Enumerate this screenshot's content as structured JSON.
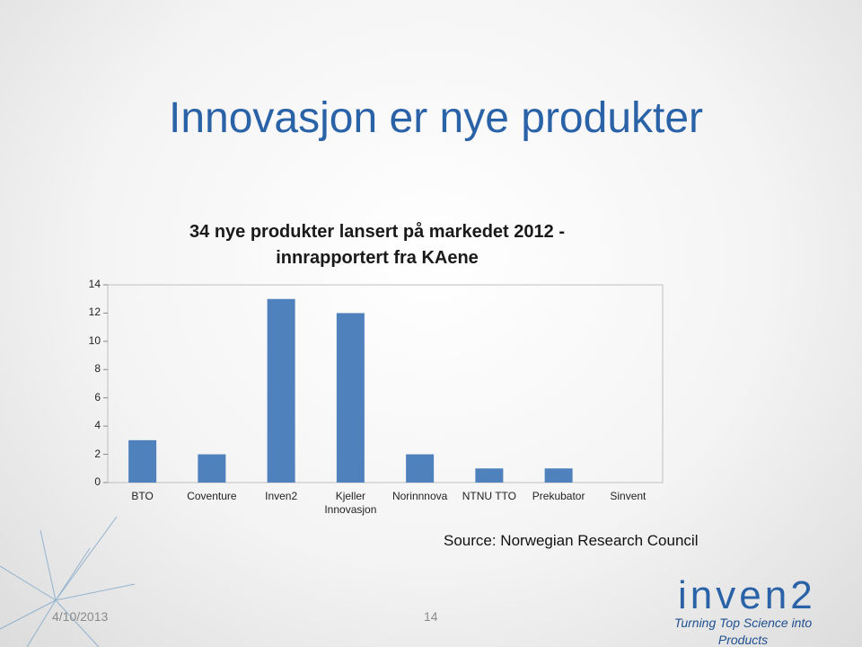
{
  "slide_title": "Innovasjon er nye produkter",
  "chart_data": {
    "type": "bar",
    "title": "34 nye produkter lansert på markedet 2012 - innrapportert fra KAene",
    "categories": [
      "BTO",
      "Coventure",
      "Inven2",
      "Kjeller Innovasjon",
      "Norinnnova",
      "NTNU TTO",
      "Prekubator",
      "Sinvent"
    ],
    "values": [
      3,
      2,
      13,
      12,
      2,
      1,
      1,
      0
    ],
    "color": "#4f81bd",
    "ylim": [
      0,
      14
    ],
    "yticks": [
      0,
      2,
      4,
      6,
      8,
      10,
      12,
      14
    ],
    "grid": false
  },
  "source": "Source: Norwegian Research Council",
  "footer": {
    "date": "4/10/2013",
    "page": "14",
    "logo": "inven2",
    "tagline": "Turning Top Science into Products"
  }
}
